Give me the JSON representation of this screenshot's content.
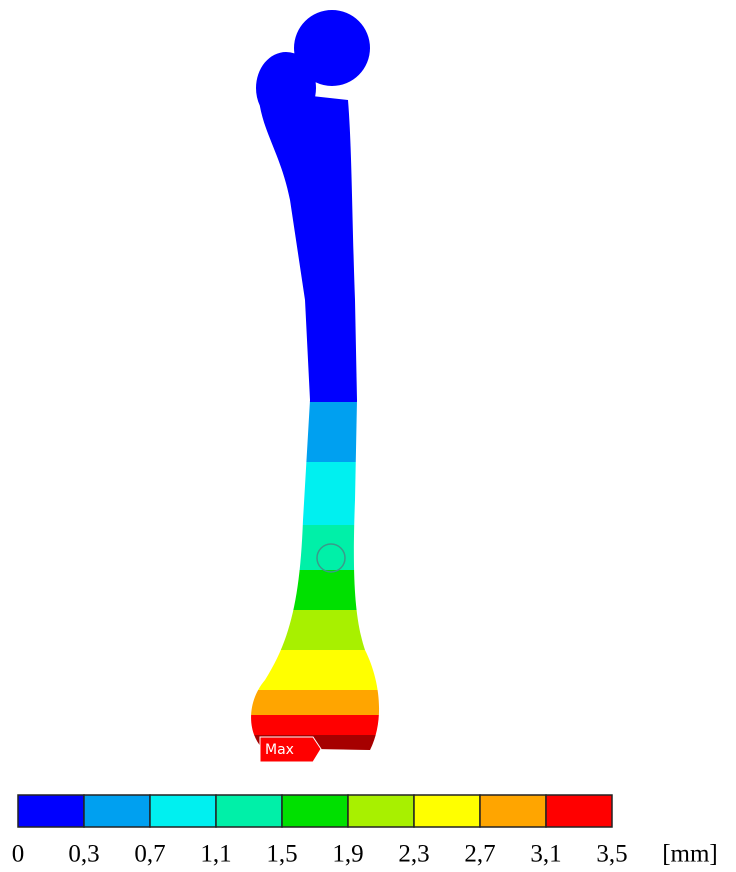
{
  "figure": {
    "annotation": "Max",
    "legend": {
      "colors": [
        "#0000ff",
        "#00a0f0",
        "#00f0f0",
        "#00f0a8",
        "#00e000",
        "#a8f000",
        "#ffff00",
        "#ffa500",
        "#ff0000"
      ],
      "ticks": [
        "0",
        "0,3",
        "0,7",
        "1,1",
        "1,5",
        "1,9",
        "2,3",
        "2,7",
        "3,1",
        "3,5"
      ],
      "unit": "[mm]"
    }
  }
}
